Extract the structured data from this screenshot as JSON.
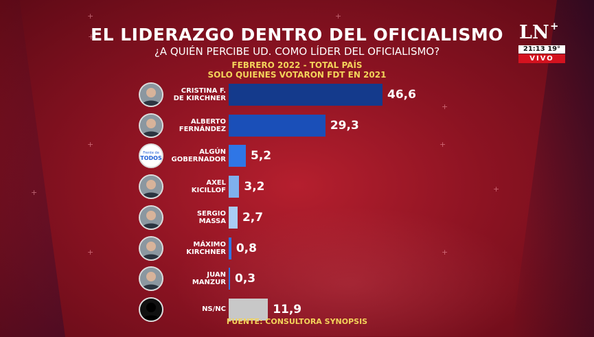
{
  "title": "EL LIDERAZGO DENTRO DEL OFICIALISMO",
  "subtitle": "¿A QUIÉN PERCIBE UD. COMO LÍDER DEL OFICIALISMO?",
  "note_line1": "FEBRERO 2022 - TOTAL PAÍS",
  "note_line2": "SOLO QUIENES VOTARON FDT EN 2021",
  "source": "FUENTE: CONSULTORA SYNOPSIS",
  "channel": {
    "logo": "LN",
    "logo_plus": "+",
    "clock": "21:13 19°",
    "live": "VIVO"
  },
  "colors": {
    "dark_blue": "#143a8c",
    "mid_blue": "#1f5fd6",
    "light_blue": "#9cc3f0",
    "gray": "#c8c8c8"
  },
  "chart_data": {
    "type": "bar",
    "orientation": "horizontal",
    "title": "EL LIDERAZGO DENTRO DEL OFICIALISMO",
    "subtitle": "¿A QUIÉN PERCIBE UD. COMO LÍDER DEL OFICIALISMO?",
    "categories": [
      [
        "CRISTINA F.",
        "DE KIRCHNER"
      ],
      [
        "ALBERTO",
        "FERNÁNDEZ"
      ],
      [
        "ALGÚN",
        "GOBERNADOR"
      ],
      [
        "AXEL",
        "KICILLOF"
      ],
      [
        "SERGIO",
        "MASSA"
      ],
      [
        "MÁXIMO",
        "KIRCHNER"
      ],
      [
        "JUAN",
        "MANZUR"
      ],
      [
        "NS/NC"
      ]
    ],
    "values": [
      46.6,
      29.3,
      5.2,
      3.2,
      2.7,
      0.8,
      0.3,
      11.9
    ],
    "value_labels": [
      "46,6",
      "29,3",
      "5,2",
      "3,2",
      "2,7",
      "0,8",
      "0,3",
      "11,9"
    ],
    "bar_colors": [
      "#143a8c",
      "#1a4fb8",
      "#2f76e6",
      "#7fb1ee",
      "#a9ccf4",
      "#2f76e6",
      "#2f76e6",
      "#c8c8c8"
    ],
    "avatars": [
      "person-icon",
      "person-icon",
      "frente-de-todos-logo",
      "person-icon",
      "person-icon",
      "person-icon",
      "person-icon",
      "silhouette-icon"
    ],
    "logo_text": [
      "Frente de",
      "TODOS"
    ],
    "xlim": [
      0,
      50
    ],
    "grid": false,
    "legend": "none"
  }
}
